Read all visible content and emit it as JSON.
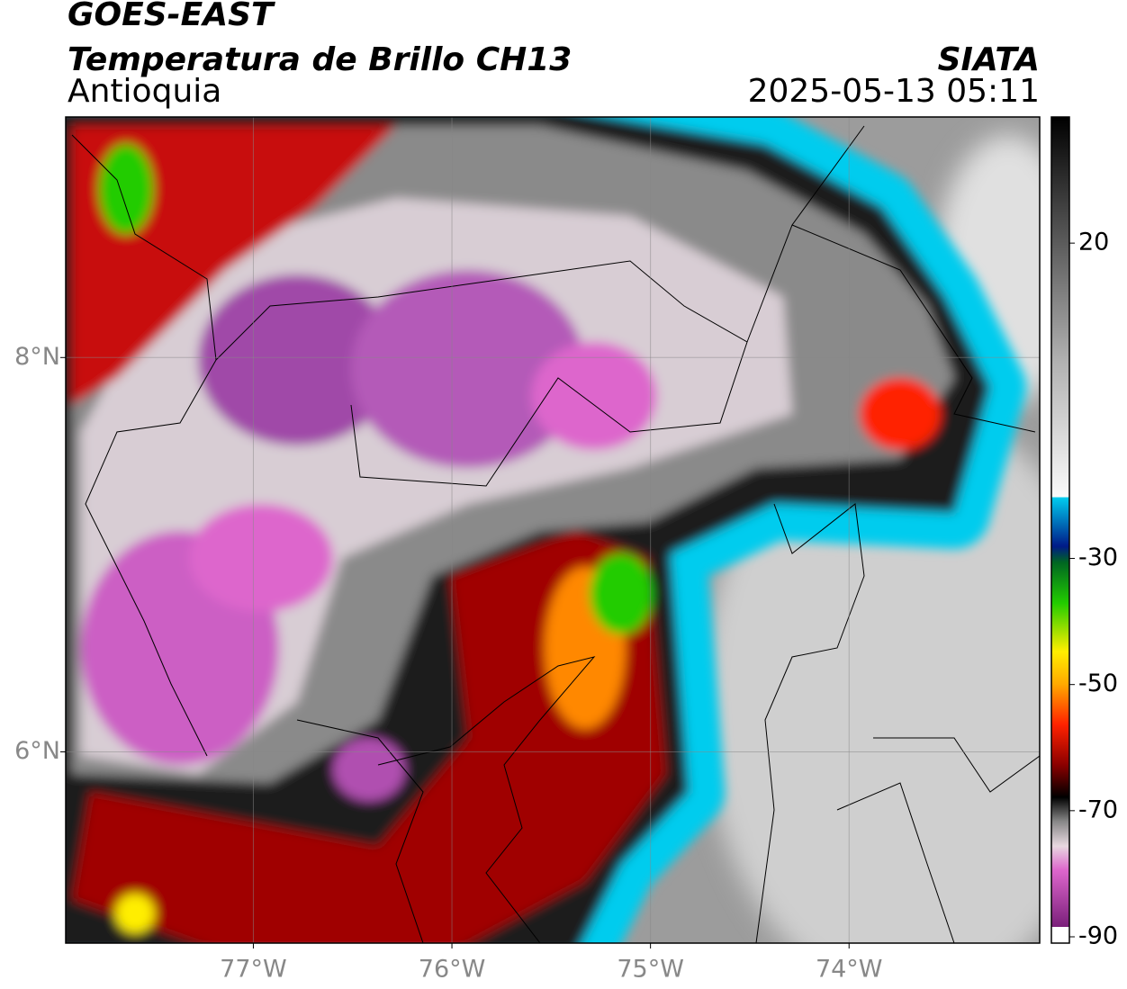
{
  "header": {
    "title": "GOES-EAST",
    "subtitle": "Temperatura de Brillo CH13",
    "region": "Antioquia",
    "source": "SIATA",
    "datetime": "2025-05-13 05:11"
  },
  "map": {
    "xlim": [
      -77.945,
      -73.04
    ],
    "ylim": [
      5.03,
      9.22
    ],
    "xticks": [
      {
        "value": -77,
        "label": "77°W"
      },
      {
        "value": -76,
        "label": "76°W"
      },
      {
        "value": -75,
        "label": "75°W"
      },
      {
        "value": -74,
        "label": "74°W"
      }
    ],
    "yticks": [
      {
        "value": 8,
        "label": "8°N"
      },
      {
        "value": 6,
        "label": "6°N"
      }
    ],
    "grid": true
  },
  "colorbar": {
    "clim": [
      -91,
      40
    ],
    "ticks": [
      20,
      -30,
      -50,
      -70,
      -90
    ]
  }
}
